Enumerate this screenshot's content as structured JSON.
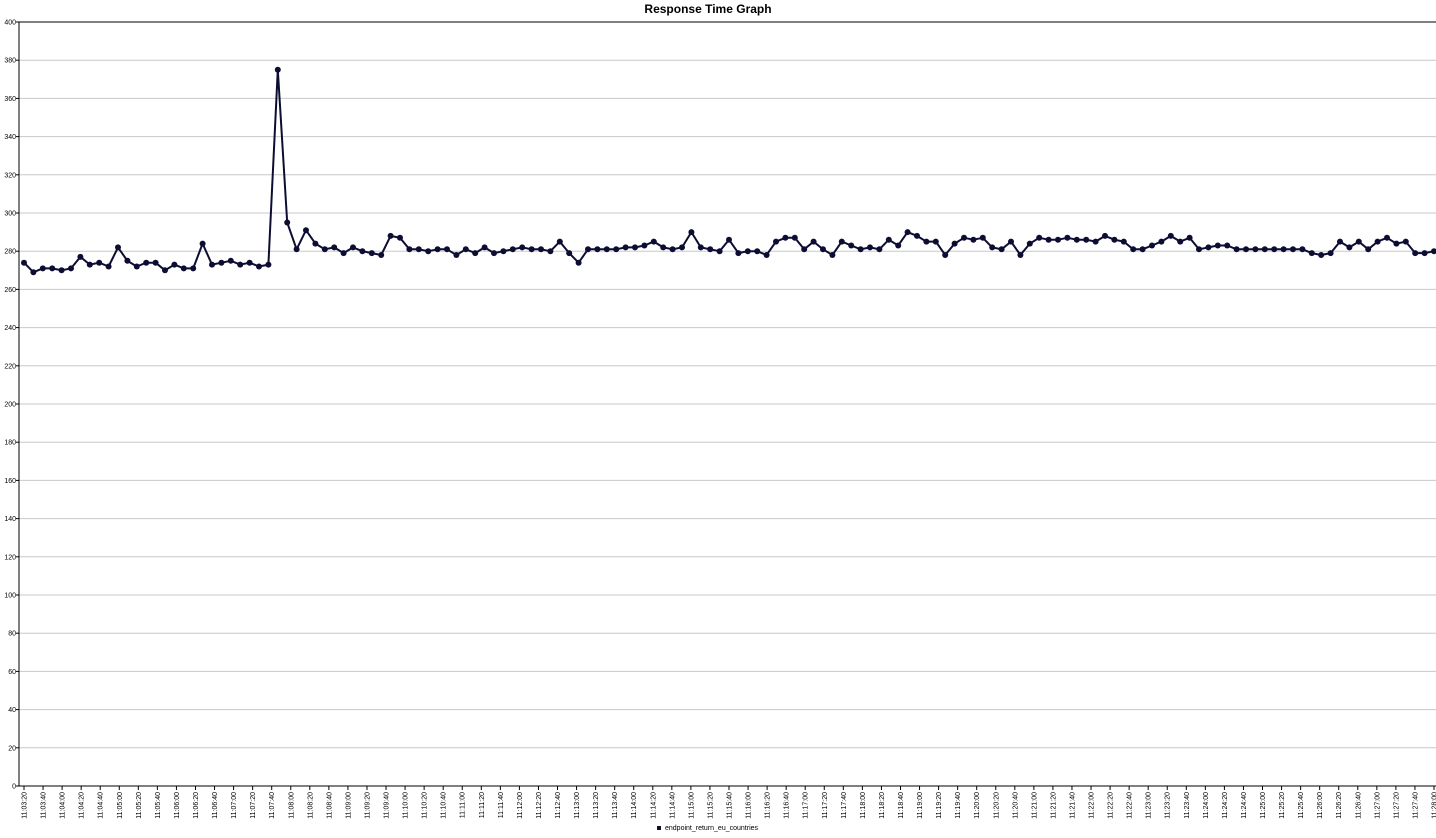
{
  "chart_data": {
    "type": "line",
    "title": "Response Time Graph",
    "xlabel": "",
    "ylabel": "",
    "ylim": [
      0,
      400
    ],
    "yticks": [
      0,
      20,
      40,
      60,
      80,
      100,
      120,
      140,
      160,
      180,
      200,
      220,
      240,
      260,
      280,
      300,
      320,
      340,
      360,
      380,
      400
    ],
    "grid": true,
    "legend_position": "bottom",
    "colors": {
      "series": "#0d0d33",
      "grid": "#c8c8c8",
      "axis": "#000000"
    },
    "x_ticks": [
      "11:03:20",
      "11:03:40",
      "11:04:00",
      "11:04:20",
      "11:04:40",
      "11:05:00",
      "11:05:20",
      "11:05:40",
      "11:06:00",
      "11:06:20",
      "11:06:40",
      "11:07:00",
      "11:07:20",
      "11:07:40",
      "11:08:00",
      "11:08:20",
      "11:08:40",
      "11:09:00",
      "11:09:20",
      "11:09:40",
      "11:10:00",
      "11:10:20",
      "11:10:40",
      "11:11:00",
      "11:11:20",
      "11:11:40",
      "11:12:00",
      "11:12:20",
      "11:12:40",
      "11:13:00",
      "11:13:20",
      "11:13:40",
      "11:14:00",
      "11:14:20",
      "11:14:40",
      "11:15:00",
      "11:15:20",
      "11:15:40",
      "11:16:00",
      "11:16:20",
      "11:16:40",
      "11:17:00",
      "11:17:20",
      "11:17:40",
      "11:18:00",
      "11:18:20",
      "11:18:40",
      "11:19:00",
      "11:19:20",
      "11:19:40",
      "11:20:00",
      "11:20:20",
      "11:20:40",
      "11:21:00",
      "11:21:20",
      "11:21:40",
      "11:22:00",
      "11:22:20",
      "11:22:40",
      "11:23:00",
      "11:23:20",
      "11:23:40",
      "11:24:00",
      "11:24:20",
      "11:24:40",
      "11:25:00",
      "11:25:20",
      "11:25:40",
      "11:26:00",
      "11:26:20",
      "11:26:40",
      "11:27:00",
      "11:27:20",
      "11:27:40",
      "11:28:00"
    ],
    "series": [
      {
        "name": "endpoint_return_eu_countries",
        "values": [
          274,
          269,
          271,
          271,
          270,
          271,
          277,
          273,
          274,
          272,
          282,
          275,
          272,
          274,
          274,
          270,
          273,
          271,
          271,
          284,
          273,
          274,
          275,
          273,
          274,
          272,
          273,
          375,
          295,
          281,
          291,
          284,
          281,
          282,
          279,
          282,
          280,
          279,
          278,
          288,
          287,
          281,
          281,
          280,
          281,
          281,
          278,
          281,
          279,
          282,
          279,
          280,
          281,
          282,
          281,
          281,
          280,
          285,
          279,
          274,
          281,
          281,
          281,
          281,
          282,
          282,
          283,
          285,
          282,
          281,
          282,
          290,
          282,
          281,
          280,
          286,
          279,
          280,
          280,
          278,
          285,
          287,
          287,
          281,
          285,
          281,
          278,
          285,
          283,
          281,
          282,
          281,
          286,
          283,
          290,
          288,
          285,
          285,
          278,
          284,
          287,
          286,
          287,
          282,
          281,
          285,
          278,
          284,
          287,
          286,
          286,
          287,
          286,
          286,
          285,
          288,
          286,
          285,
          281,
          281,
          283,
          285,
          288,
          285,
          287,
          281,
          282,
          283,
          283,
          281,
          281,
          281,
          281,
          281,
          281,
          281,
          281,
          279,
          278,
          279,
          285,
          282,
          285,
          281,
          285,
          287,
          284,
          285,
          279,
          279,
          280
        ]
      }
    ]
  }
}
